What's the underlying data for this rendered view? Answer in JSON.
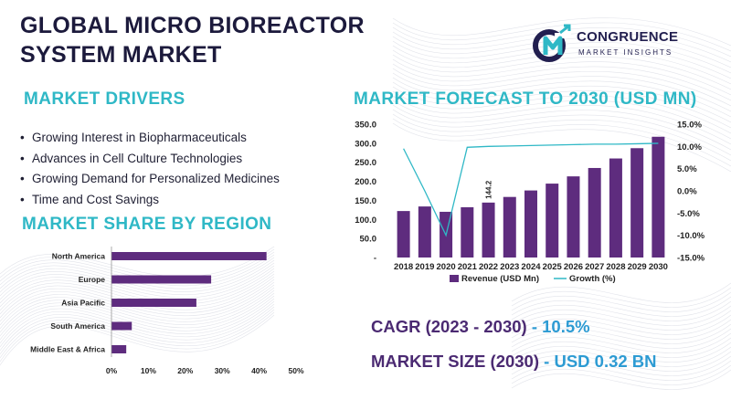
{
  "title": {
    "line1": "GLOBAL MICRO BIOREACTOR",
    "line2": "SYSTEM MARKET"
  },
  "logo": {
    "name": "CONGRUENCE",
    "tagline": "MARKET INSIGHTS",
    "icon": "cm-monogram-icon"
  },
  "drivers": {
    "heading": "MARKET DRIVERS",
    "items": [
      "Growing Interest in Biopharmaceuticals",
      "Advances in Cell Culture Technologies",
      "Growing Demand for Personalized Medicines",
      "Time and Cost Savings"
    ]
  },
  "region_heading": "MARKET SHARE BY REGION",
  "forecast_heading": "MARKET FORECAST TO 2030 (USD MN)",
  "stats": {
    "cagr_label": "CAGR (2023 - 2030)",
    "cagr_value": " - 10.5%",
    "size_label": "MARKET SIZE (2030)",
    "size_value": " - USD 0.32 BN"
  },
  "colors": {
    "bar": "#5e2c7e",
    "line": "#2fb8c6",
    "heading": "#2fb8c6",
    "title": "#1c1a3c"
  },
  "chart_data": [
    {
      "type": "bar",
      "subtype": "combo-bar-line",
      "categories": [
        "2018",
        "2019",
        "2020",
        "2021",
        "2022",
        "2023",
        "2024",
        "2025",
        "2026",
        "2027",
        "2028",
        "2029",
        "2030"
      ],
      "series": [
        {
          "name": "Revenue (USD Mn)",
          "type": "bar",
          "axis": "left",
          "values": [
            122,
            134,
            120,
            132,
            144.2,
            159,
            176,
            194,
            213,
            235,
            260,
            287,
            317
          ]
        },
        {
          "name": "Growth (%)",
          "type": "line",
          "axis": "right",
          "values": [
            9.5,
            0,
            -10.0,
            9.8,
            10.0,
            10.1,
            10.2,
            10.3,
            10.4,
            10.5,
            10.5,
            10.6,
            10.7
          ]
        }
      ],
      "data_labels": [
        {
          "category": "2022",
          "text": "144.2"
        }
      ],
      "left_axis": {
        "ylim": [
          0,
          350
        ],
        "ticks": [
          "-",
          "50.0",
          "100.0",
          "150.0",
          "200.0",
          "250.0",
          "300.0",
          "350.0"
        ]
      },
      "right_axis": {
        "ylim": [
          -15,
          15
        ],
        "ticks": [
          "-15.0%",
          "-10.0%",
          "-5.0%",
          "0.0%",
          "5.0%",
          "10.0%",
          "15.0%"
        ]
      },
      "legend": {
        "position": "bottom",
        "entries": [
          "Revenue (USD Mn)",
          "Growth (%)"
        ]
      },
      "grid": false
    },
    {
      "type": "bar",
      "orientation": "horizontal",
      "categories": [
        "North America",
        "Europe",
        "Asia Pacific",
        "South America",
        "Middle East & Africa"
      ],
      "values": [
        42,
        27,
        23,
        5.5,
        4
      ],
      "xlim": [
        0,
        50
      ],
      "x_ticks": [
        "0%",
        "10%",
        "20%",
        "30%",
        "40%",
        "50%"
      ],
      "grid": false
    }
  ]
}
